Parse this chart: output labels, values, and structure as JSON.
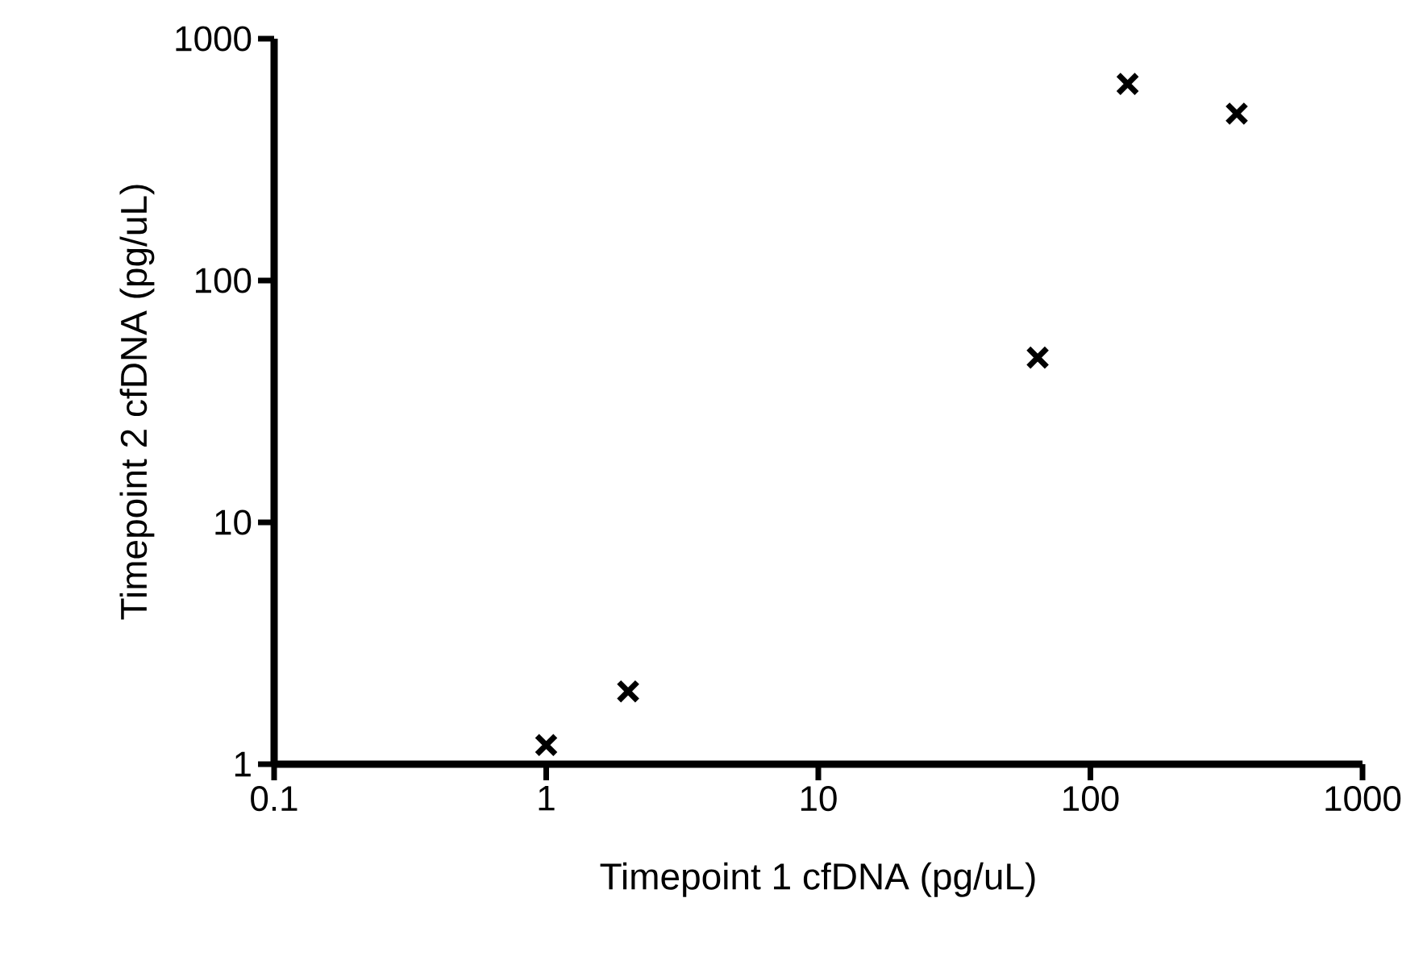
{
  "chart_data": {
    "type": "scatter",
    "xlabel": "Timepoint 1 cfDNA (pg/uL)",
    "ylabel": "Timepoint 2 cfDNA (pg/uL)",
    "log": "xy",
    "xlim": [
      0.1,
      1000
    ],
    "ylim": [
      1,
      1000
    ],
    "xticks": [
      0.1,
      1,
      10,
      100,
      1000
    ],
    "yticks": [
      1,
      10,
      100,
      1000
    ],
    "marker": "cross",
    "grid": false,
    "series": [
      {
        "color": "#000000",
        "x": [
          1,
          2,
          64,
          137,
          345
        ],
        "values": [
          1.2,
          2.0,
          48,
          650,
          490
        ]
      }
    ]
  }
}
